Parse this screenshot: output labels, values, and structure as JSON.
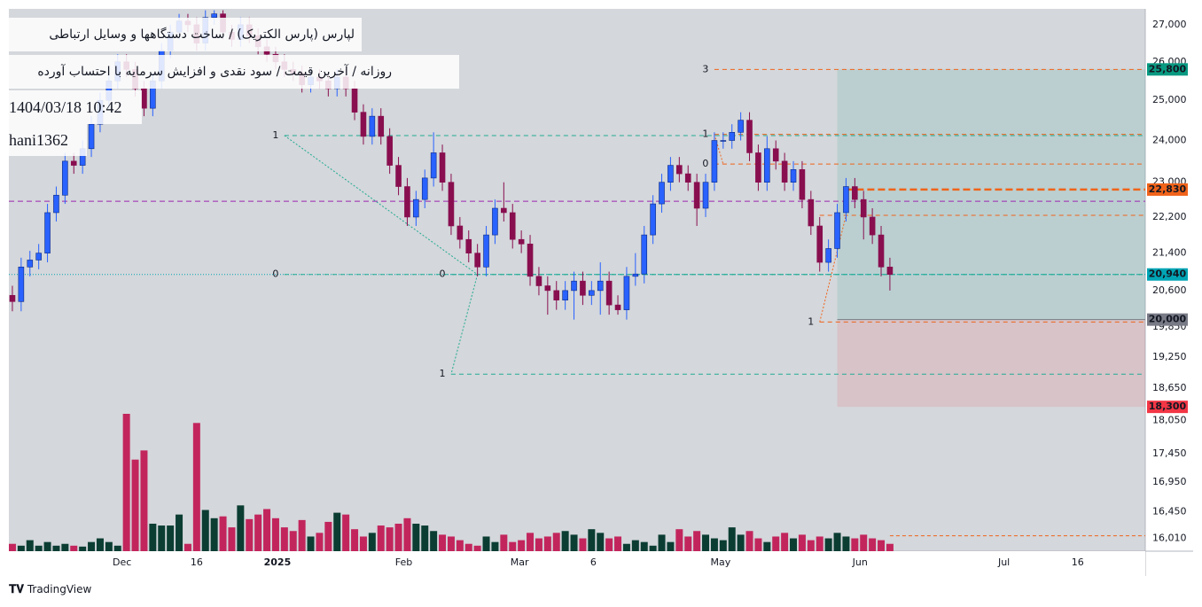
{
  "chart_data": {
    "type": "candlestick",
    "title": "لپارس (پارس الکتریک) / ساخت دستگاهها و وسایل ارتباطی",
    "subtitle": "روزانه / آخرین قیمت / سود نقدی و افزایش سرمایه با احتساب آورده",
    "timestamp": "1404/03/18 10:42",
    "author": "hani1362",
    "brand": "TradingView",
    "log_y": true,
    "xlim": [
      -0.4,
      129.1
    ],
    "ylim": [
      15800,
      27440
    ],
    "xticks": [
      {
        "value": 12.5,
        "label": "Dec"
      },
      {
        "value": 21,
        "label": "16"
      },
      {
        "value": 30.2,
        "label": "2025"
      },
      {
        "value": 44.6,
        "label": "Feb"
      },
      {
        "value": 57.8,
        "label": "Mar"
      },
      {
        "value": 66.2,
        "label": "6"
      },
      {
        "value": 80.7,
        "label": "May"
      },
      {
        "value": 96.6,
        "label": "Jun"
      },
      {
        "value": 113,
        "label": "Jul"
      },
      {
        "value": 121.4,
        "label": "16"
      }
    ],
    "yticks": [
      {
        "value": 27000,
        "label": "27,000"
      },
      {
        "value": 26000,
        "label": "26,000"
      },
      {
        "value": 25000,
        "label": "25,000"
      },
      {
        "value": 24000,
        "label": "24,000"
      },
      {
        "value": 23000,
        "label": "23,000"
      },
      {
        "value": 22200,
        "label": "22,200"
      },
      {
        "value": 21400,
        "label": "21,400"
      },
      {
        "value": 20600,
        "label": "20,600"
      },
      {
        "value": 19850,
        "label": "19,850"
      },
      {
        "value": 19250,
        "label": "19,250"
      },
      {
        "value": 18650,
        "label": "18,650"
      },
      {
        "value": 18050,
        "label": "18,050"
      },
      {
        "value": 17450,
        "label": "17,450"
      },
      {
        "value": 16950,
        "label": "16,950"
      },
      {
        "value": 16450,
        "label": "16,450"
      },
      {
        "value": 16010,
        "label": "16,010"
      }
    ],
    "up_color": "#2962ff",
    "down_color": "#880e4f",
    "volume_up_color": "#0b3d33",
    "volume_down_color": "#c2255c",
    "open": [
      20500,
      20370,
      21100,
      21250,
      21400,
      22300,
      22700,
      23500,
      23400,
      23800,
      24400,
      25000,
      25500,
      26000,
      25800,
      25300,
      24800,
      25500,
      26300,
      26800,
      27100,
      27000,
      26500,
      27200,
      27300,
      26800,
      26600,
      27000,
      26700,
      26400,
      26200,
      26000,
      25800,
      25700,
      25400,
      25600,
      25500,
      25300,
      25600,
      25300,
      24700,
      24100,
      24600,
      24100,
      23400,
      22900,
      22200,
      22600,
      23100,
      23700,
      23000,
      22000,
      21700,
      21400,
      21100,
      21800,
      22400,
      22300,
      21700,
      21600,
      20900,
      20700,
      20600,
      20400,
      20600,
      20800,
      20500,
      20600,
      20800,
      20300,
      20200,
      20900,
      20950,
      21800,
      22500,
      23000,
      23400,
      23200,
      23000,
      22400,
      23000,
      24000,
      24000,
      24200,
      24500,
      23700,
      23000,
      23800,
      23500,
      23000,
      23300,
      22600,
      22000,
      21200,
      21500,
      22300,
      22900,
      22600,
      22200,
      21800,
      21100
    ],
    "high": [
      20700,
      21300,
      21450,
      21600,
      22500,
      22900,
      23700,
      23700,
      24000,
      24600,
      25200,
      25700,
      26200,
      26200,
      26000,
      25500,
      25700,
      26500,
      27000,
      27300,
      27300,
      27200,
      27400,
      27400,
      27400,
      27000,
      27200,
      27200,
      26900,
      26600,
      26400,
      26200,
      26000,
      25900,
      25800,
      25800,
      25700,
      25800,
      25800,
      25500,
      24900,
      24800,
      24800,
      24300,
      23600,
      23100,
      22800,
      23300,
      24200,
      23900,
      23200,
      22200,
      21900,
      21600,
      22000,
      22600,
      23000,
      22500,
      21900,
      21800,
      21100,
      20900,
      20800,
      20800,
      21000,
      21000,
      20800,
      21200,
      21000,
      20500,
      21100,
      21400,
      22000,
      22700,
      23200,
      23600,
      23600,
      23400,
      23200,
      23200,
      24200,
      24200,
      24400,
      24700,
      24700,
      23900,
      24100,
      24000,
      23700,
      23500,
      23500,
      22800,
      22200,
      21700,
      22500,
      23100,
      23100,
      22800,
      22400,
      22000,
      21300
    ],
    "low": [
      20170,
      20170,
      20900,
      21050,
      21200,
      22100,
      22500,
      23200,
      23200,
      23600,
      24200,
      24800,
      25300,
      25600,
      25100,
      24600,
      24600,
      25300,
      26100,
      26600,
      26800,
      26300,
      26300,
      27000,
      26600,
      26400,
      26400,
      26500,
      26200,
      26000,
      25800,
      25600,
      25500,
      25200,
      25200,
      25300,
      25100,
      25100,
      25100,
      24500,
      23900,
      23900,
      23900,
      23200,
      22700,
      22000,
      22000,
      22400,
      22900,
      22800,
      21800,
      21500,
      21200,
      20900,
      20900,
      21600,
      22100,
      21500,
      21400,
      20700,
      20500,
      20100,
      20200,
      20200,
      20000,
      20300,
      20300,
      20100,
      20100,
      20100,
      20000,
      20700,
      20750,
      21600,
      22300,
      22800,
      23000,
      22800,
      22000,
      22200,
      22800,
      23800,
      23800,
      24000,
      23500,
      22800,
      22800,
      23300,
      22800,
      22800,
      22400,
      21800,
      21000,
      21000,
      21300,
      22100,
      22400,
      21700,
      21600,
      20900,
      20600
    ],
    "close": [
      20370,
      21100,
      21250,
      21400,
      22300,
      22700,
      23500,
      23400,
      23800,
      24400,
      25000,
      25500,
      26000,
      25800,
      25300,
      24800,
      25500,
      26300,
      26800,
      27100,
      27000,
      26500,
      27200,
      27300,
      26800,
      26600,
      27000,
      26700,
      26400,
      26200,
      26000,
      25800,
      25700,
      25400,
      25600,
      25500,
      25300,
      25600,
      25300,
      24700,
      24100,
      24600,
      24100,
      23400,
      22900,
      22200,
      22600,
      23100,
      23700,
      23000,
      22000,
      21700,
      21400,
      21100,
      21800,
      22400,
      22300,
      21700,
      21600,
      20900,
      20700,
      20600,
      20400,
      20600,
      20800,
      20500,
      20600,
      20800,
      20300,
      20200,
      20900,
      20950,
      21800,
      22500,
      23000,
      23400,
      23200,
      23000,
      22400,
      23000,
      24000,
      24000,
      24200,
      24500,
      23700,
      23000,
      23800,
      23500,
      23000,
      23300,
      22600,
      22000,
      21200,
      21500,
      22300,
      22900,
      22600,
      22200,
      21800,
      21100,
      20940
    ],
    "volume": [
      8,
      6,
      12,
      6,
      10,
      6,
      8,
      6,
      5,
      10,
      14,
      10,
      6,
      150,
      100,
      110,
      30,
      28,
      28,
      40,
      8,
      140,
      45,
      36,
      38,
      26,
      50,
      35,
      40,
      46,
      36,
      26,
      22,
      34,
      16,
      20,
      32,
      42,
      40,
      24,
      16,
      20,
      28,
      26,
      30,
      36,
      30,
      28,
      22,
      18,
      16,
      12,
      8,
      6,
      16,
      10,
      18,
      10,
      12,
      20,
      14,
      16,
      20,
      22,
      18,
      14,
      24,
      20,
      14,
      16,
      8,
      12,
      10,
      6,
      18,
      10,
      24,
      16,
      22,
      18,
      14,
      12,
      26,
      18,
      22,
      14,
      10,
      16,
      20,
      14,
      18,
      12,
      16,
      14,
      20,
      16,
      14,
      18,
      14,
      12,
      8
    ],
    "position": {
      "start": 94,
      "target": 25800,
      "entry": 20000,
      "stop": 18300,
      "profit_color": "#089981",
      "loss_color": "#f23645"
    },
    "lines": [
      {
        "value": 22560,
        "start": -0.4,
        "color": "#9c27b0",
        "dash": "6 4"
      },
      {
        "value": 20940,
        "start": -0.4,
        "color": "#00a5b5",
        "dash": "1 2"
      },
      {
        "value": 22830,
        "start": 95,
        "color": "#f0631a",
        "dash": "8 4"
      },
      {
        "value": 16050,
        "start": 100,
        "color": "#f0631a",
        "dash": "4 3"
      }
    ],
    "levels": [
      {
        "label": "1",
        "value": 24120,
        "start": 31,
        "color": "#22ab94"
      },
      {
        "label": "0",
        "value": 20940,
        "start": 31,
        "color": "#22ab94"
      },
      {
        "label": "0",
        "value": 20940,
        "start": 50,
        "color": "#22ab94"
      },
      {
        "label": "1",
        "value": 18920,
        "start": 50,
        "color": "#22ab94"
      },
      {
        "label": "3",
        "value": 25800,
        "start": 80,
        "color": "#f0631a"
      },
      {
        "label": "1",
        "value": 24150,
        "start": 80,
        "color": "#f0631a"
      },
      {
        "label": "0",
        "value": 23430,
        "start": 80,
        "color": "#f0631a"
      },
      {
        "label": "0",
        "value": 22240,
        "start": 92,
        "color": "#f0631a"
      },
      {
        "label": "1",
        "value": 19950,
        "start": 92,
        "color": "#f0631a"
      }
    ],
    "trend_lines": [
      {
        "points": [
          [
            31,
            24120
          ],
          [
            53,
            20940
          ]
        ],
        "color": "#22ab94"
      },
      {
        "points": [
          [
            53,
            20940
          ],
          [
            50,
            18920
          ]
        ],
        "color": "#22ab94"
      },
      {
        "points": [
          [
            80,
            24150
          ],
          [
            81,
            23430
          ]
        ],
        "color": "#f0631a"
      },
      {
        "points": [
          [
            92,
            19950
          ],
          [
            95,
            22240
          ]
        ],
        "color": "#f0631a"
      }
    ],
    "price_labels": [
      {
        "value": 25800,
        "label": "25,800",
        "color": "#089981"
      },
      {
        "value": 22830,
        "label": "22,830",
        "color": "#f0631a"
      },
      {
        "value": 20940,
        "label": "20,940",
        "color": "#00a5b5"
      },
      {
        "value": 20000,
        "label": "20,000",
        "color": "#787b86"
      },
      {
        "value": 18300,
        "label": "18,300",
        "color": "#f23645"
      }
    ]
  }
}
